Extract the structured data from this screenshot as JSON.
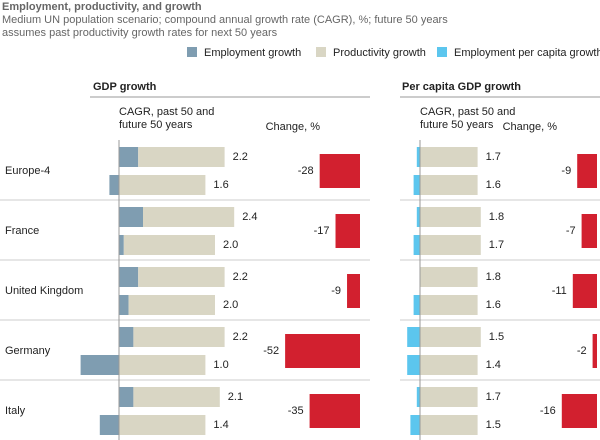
{
  "chart_data": {
    "type": "stacked-bar",
    "title": "Employment, productivity, and growth",
    "subtitle": "Medium UN population scenario; compound annual growth rate (CAGR), %; future 50 years assumes past productivity growth rates for next 50 years",
    "categories": [
      "Europe-4",
      "France",
      "United Kingdom",
      "Germany",
      "Italy"
    ],
    "series": [
      {
        "name": "Employment growth",
        "color": "#7f9db1",
        "past": [
          0.4,
          0.5,
          0.4,
          0.3,
          0.3
        ],
        "future": [
          -0.2,
          0.1,
          0.2,
          -0.8,
          -0.4
        ]
      },
      {
        "name": "Productivity growth",
        "color": "#d9d6c4",
        "past": [
          1.8,
          1.9,
          1.8,
          1.9,
          1.8
        ],
        "future": [
          1.8,
          1.9,
          1.8,
          1.8,
          1.8
        ]
      },
      {
        "name": "Employment per capita growth",
        "color": "#5cc6ee",
        "past": [
          -0.1,
          -0.1,
          0.0,
          -0.4,
          -0.1
        ],
        "future": [
          -0.2,
          -0.2,
          -0.2,
          -0.4,
          -0.3
        ]
      }
    ],
    "panels": [
      {
        "title": "GDP growth",
        "cagr_label": "CAGR, past 50 and future 50 years",
        "change_label": "Change, %",
        "totals": {
          "past": {
            "values": [
              2.2,
              2.4,
              2.2,
              2.2,
              2.1
            ],
            "value_labels": [
              "2.2",
              "2.4",
              "2.2",
              "2.2",
              "2.1"
            ]
          },
          "future": {
            "values": [
              1.6,
              2.0,
              2.0,
              1.0,
              1.4
            ],
            "value_labels": [
              "1.6",
              "2.0",
              "2.0",
              "1.0",
              "1.4"
            ]
          }
        },
        "change": {
          "color": "#d2202f",
          "values": [
            -28,
            -17,
            -9,
            -52,
            -35
          ]
        }
      },
      {
        "title": "Per capita GDP growth",
        "cagr_label": "CAGR, past 50 and future 50 years",
        "change_label": "Change, %",
        "totals": {
          "past": {
            "values": [
              1.7,
              1.8,
              1.8,
              1.5,
              1.7
            ],
            "value_labels": [
              "1.7",
              "1.8",
              "1.8",
              "1.5",
              "1.7"
            ]
          },
          "future": {
            "values": [
              1.6,
              1.7,
              1.6,
              1.4,
              1.5
            ],
            "value_labels": [
              "1.6",
              "1.7",
              "1.6",
              "1.4",
              "1.5"
            ]
          }
        },
        "change": {
          "color": "#d2202f",
          "values": [
            -9,
            -7,
            -11,
            -2,
            -16
          ]
        }
      }
    ]
  }
}
